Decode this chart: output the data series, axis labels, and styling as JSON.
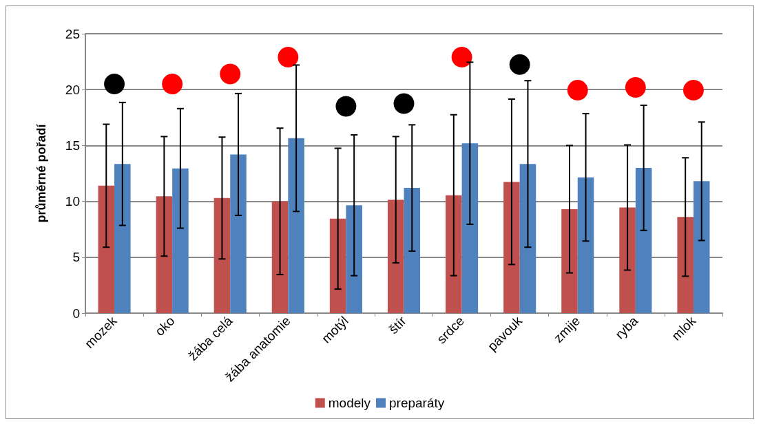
{
  "chart_data": {
    "type": "bar",
    "ylabel": "průměrné pořadí",
    "categories": [
      "mozek",
      "oko",
      "žába celá",
      "žába anatomie",
      "motýl",
      "štír",
      "srdce",
      "pavouk",
      "zmije",
      "ryba",
      "mlok"
    ],
    "series": [
      {
        "name": "modely",
        "color": "#c0504d",
        "values": [
          11.4,
          10.45,
          10.3,
          10.0,
          8.45,
          10.15,
          10.55,
          11.75,
          9.3,
          9.45,
          8.6
        ],
        "errors": [
          5.5,
          5.35,
          5.45,
          6.55,
          6.3,
          5.65,
          7.2,
          7.4,
          5.7,
          5.6,
          5.3
        ]
      },
      {
        "name": "preparáty",
        "color": "#4f81bd",
        "values": [
          13.35,
          12.95,
          14.2,
          15.65,
          9.65,
          11.2,
          15.2,
          13.35,
          12.15,
          13.0,
          11.8
        ],
        "errors": [
          5.5,
          5.35,
          5.45,
          6.55,
          6.3,
          5.65,
          7.25,
          7.45,
          5.7,
          5.6,
          5.3
        ]
      },
      {
        "type": "scatter",
        "x": [
          "mozek",
          "oko",
          "žába celá",
          "žába anatomie",
          "motýl",
          "štír",
          "srdce",
          "pavouk",
          "zmije",
          "ryba",
          "mlok"
        ],
        "values": [
          20.5,
          20.5,
          21.4,
          22.9,
          18.5,
          18.75,
          22.9,
          22.25,
          19.95,
          20.2,
          19.95
        ],
        "colors": [
          "#000000",
          "#ff0000",
          "#ff0000",
          "#ff0000",
          "#000000",
          "#000000",
          "#ff0000",
          "#000000",
          "#ff0000",
          "#ff0000",
          "#ff0000"
        ],
        "marker": "circle"
      }
    ],
    "ylim": [
      0,
      25
    ],
    "yticks": [
      0,
      5,
      10,
      15,
      20,
      25
    ],
    "grid": "y",
    "legend": "bottom"
  }
}
